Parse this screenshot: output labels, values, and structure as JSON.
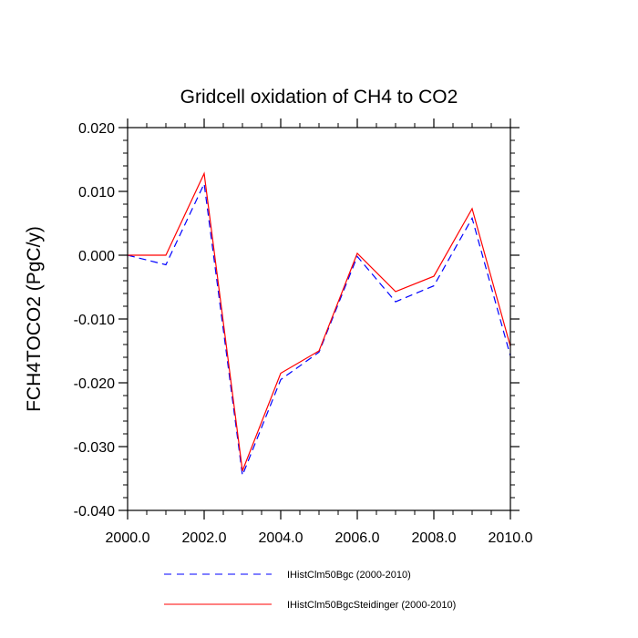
{
  "chart_data": {
    "type": "line",
    "title": "Gridcell oxidation of CH4 to CO2",
    "xlabel": "",
    "ylabel": "FCH4TOCO2  (PgC/y)",
    "xlim": [
      2000,
      2010
    ],
    "ylim": [
      -0.04,
      0.02
    ],
    "xticks": [
      2000,
      2002,
      2004,
      2006,
      2008,
      2010
    ],
    "xtick_labels": [
      "2000.0",
      "2002.0",
      "2004.0",
      "2006.0",
      "2008.0",
      "2010.0"
    ],
    "yticks": [
      -0.04,
      -0.03,
      -0.02,
      -0.01,
      0.0,
      0.01,
      0.02
    ],
    "ytick_labels": [
      "-0.040",
      "-0.030",
      "-0.020",
      "-0.010",
      "0.000",
      "0.010",
      "0.020"
    ],
    "grid": false,
    "legend_position": "bottom",
    "x": [
      2000,
      2001,
      2002,
      2003,
      2004,
      2005,
      2006,
      2007,
      2008,
      2009,
      2010
    ],
    "series": [
      {
        "name": "IHistClm50Bgc (2000-2010)",
        "color": "#0000ff",
        "dash": "dashed",
        "values": [
          0.0,
          -0.0015,
          0.0112,
          -0.0345,
          -0.0195,
          -0.0152,
          -0.0002,
          -0.0073,
          -0.0048,
          0.0058,
          -0.0158
        ]
      },
      {
        "name": "IHistClm50BgcSteidinger (2000-2010)",
        "color": "#ff0000",
        "dash": "solid",
        "values": [
          0.0,
          0.0,
          0.0128,
          -0.0338,
          -0.0185,
          -0.015,
          0.0003,
          -0.0057,
          -0.0033,
          0.0073,
          -0.0143
        ]
      }
    ]
  }
}
